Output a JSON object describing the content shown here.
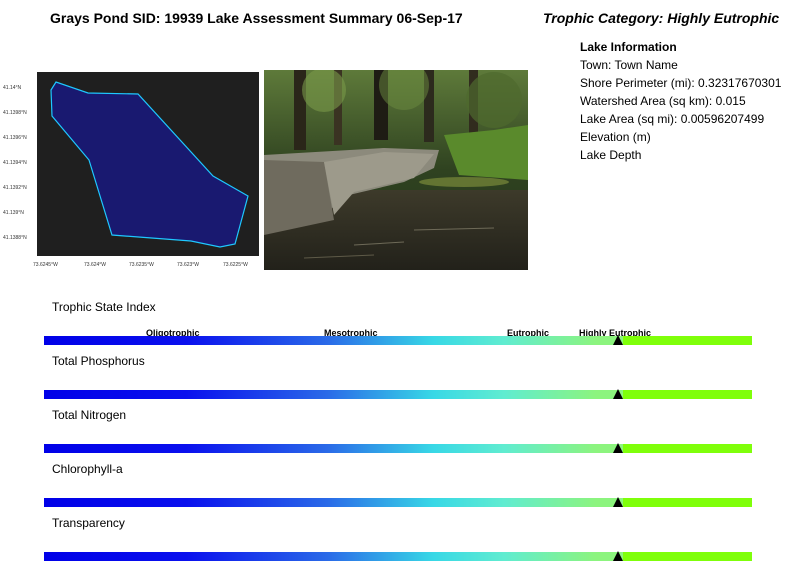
{
  "header": {
    "title": "Grays Pond SID: 19939 Lake Assessment Summary 06-Sep-17",
    "trophic_category": "Trophic Category: Highly Eutrophic"
  },
  "lake_info": {
    "heading": "Lake Information",
    "lines": [
      "Town: Town Name",
      "Shore Perimeter (mi): 0.32317670301",
      "Watershed Area (sq km): 0.015",
      "Lake Area (sq mi): 0.00596207499",
      "Elevation (m)",
      "Lake Depth"
    ]
  },
  "map": {
    "lat_labels": [
      "41.14°N",
      "41.1398°N",
      "41.1396°N",
      "41.1394°N",
      "41.1392°N",
      "41.139°N",
      "41.1388°N"
    ],
    "lon_labels": [
      "73.6245°W",
      "73.624°W",
      "73.6235°W",
      "73.623°W",
      "73.6225°W"
    ],
    "colors": {
      "background": "#1f1f1f",
      "lake_fill": "#191970",
      "lake_outline": "#1ec8ff"
    }
  },
  "photo": {
    "icon": "lake-shore-photo"
  },
  "scale_ticks": [
    "Oligotrophic",
    "Mesotrophic",
    "Eutrophic",
    "Highly Eutrophic"
  ],
  "indicators": [
    {
      "label": "Trophic State Index",
      "position": 0.811
    },
    {
      "label": "Total Phosphorus",
      "position": 0.811
    },
    {
      "label": "Total Nitrogen",
      "position": 0.811
    },
    {
      "label": "Chlorophyll-a",
      "position": 0.811
    },
    {
      "label": "Transparency",
      "position": 0.811
    }
  ],
  "colors": {
    "scale_low": "#0000e8",
    "scale_mid": "#38d8e6",
    "scale_high": "#8cf47e",
    "scale_top": "#7fff0a",
    "marker": "#000000"
  }
}
